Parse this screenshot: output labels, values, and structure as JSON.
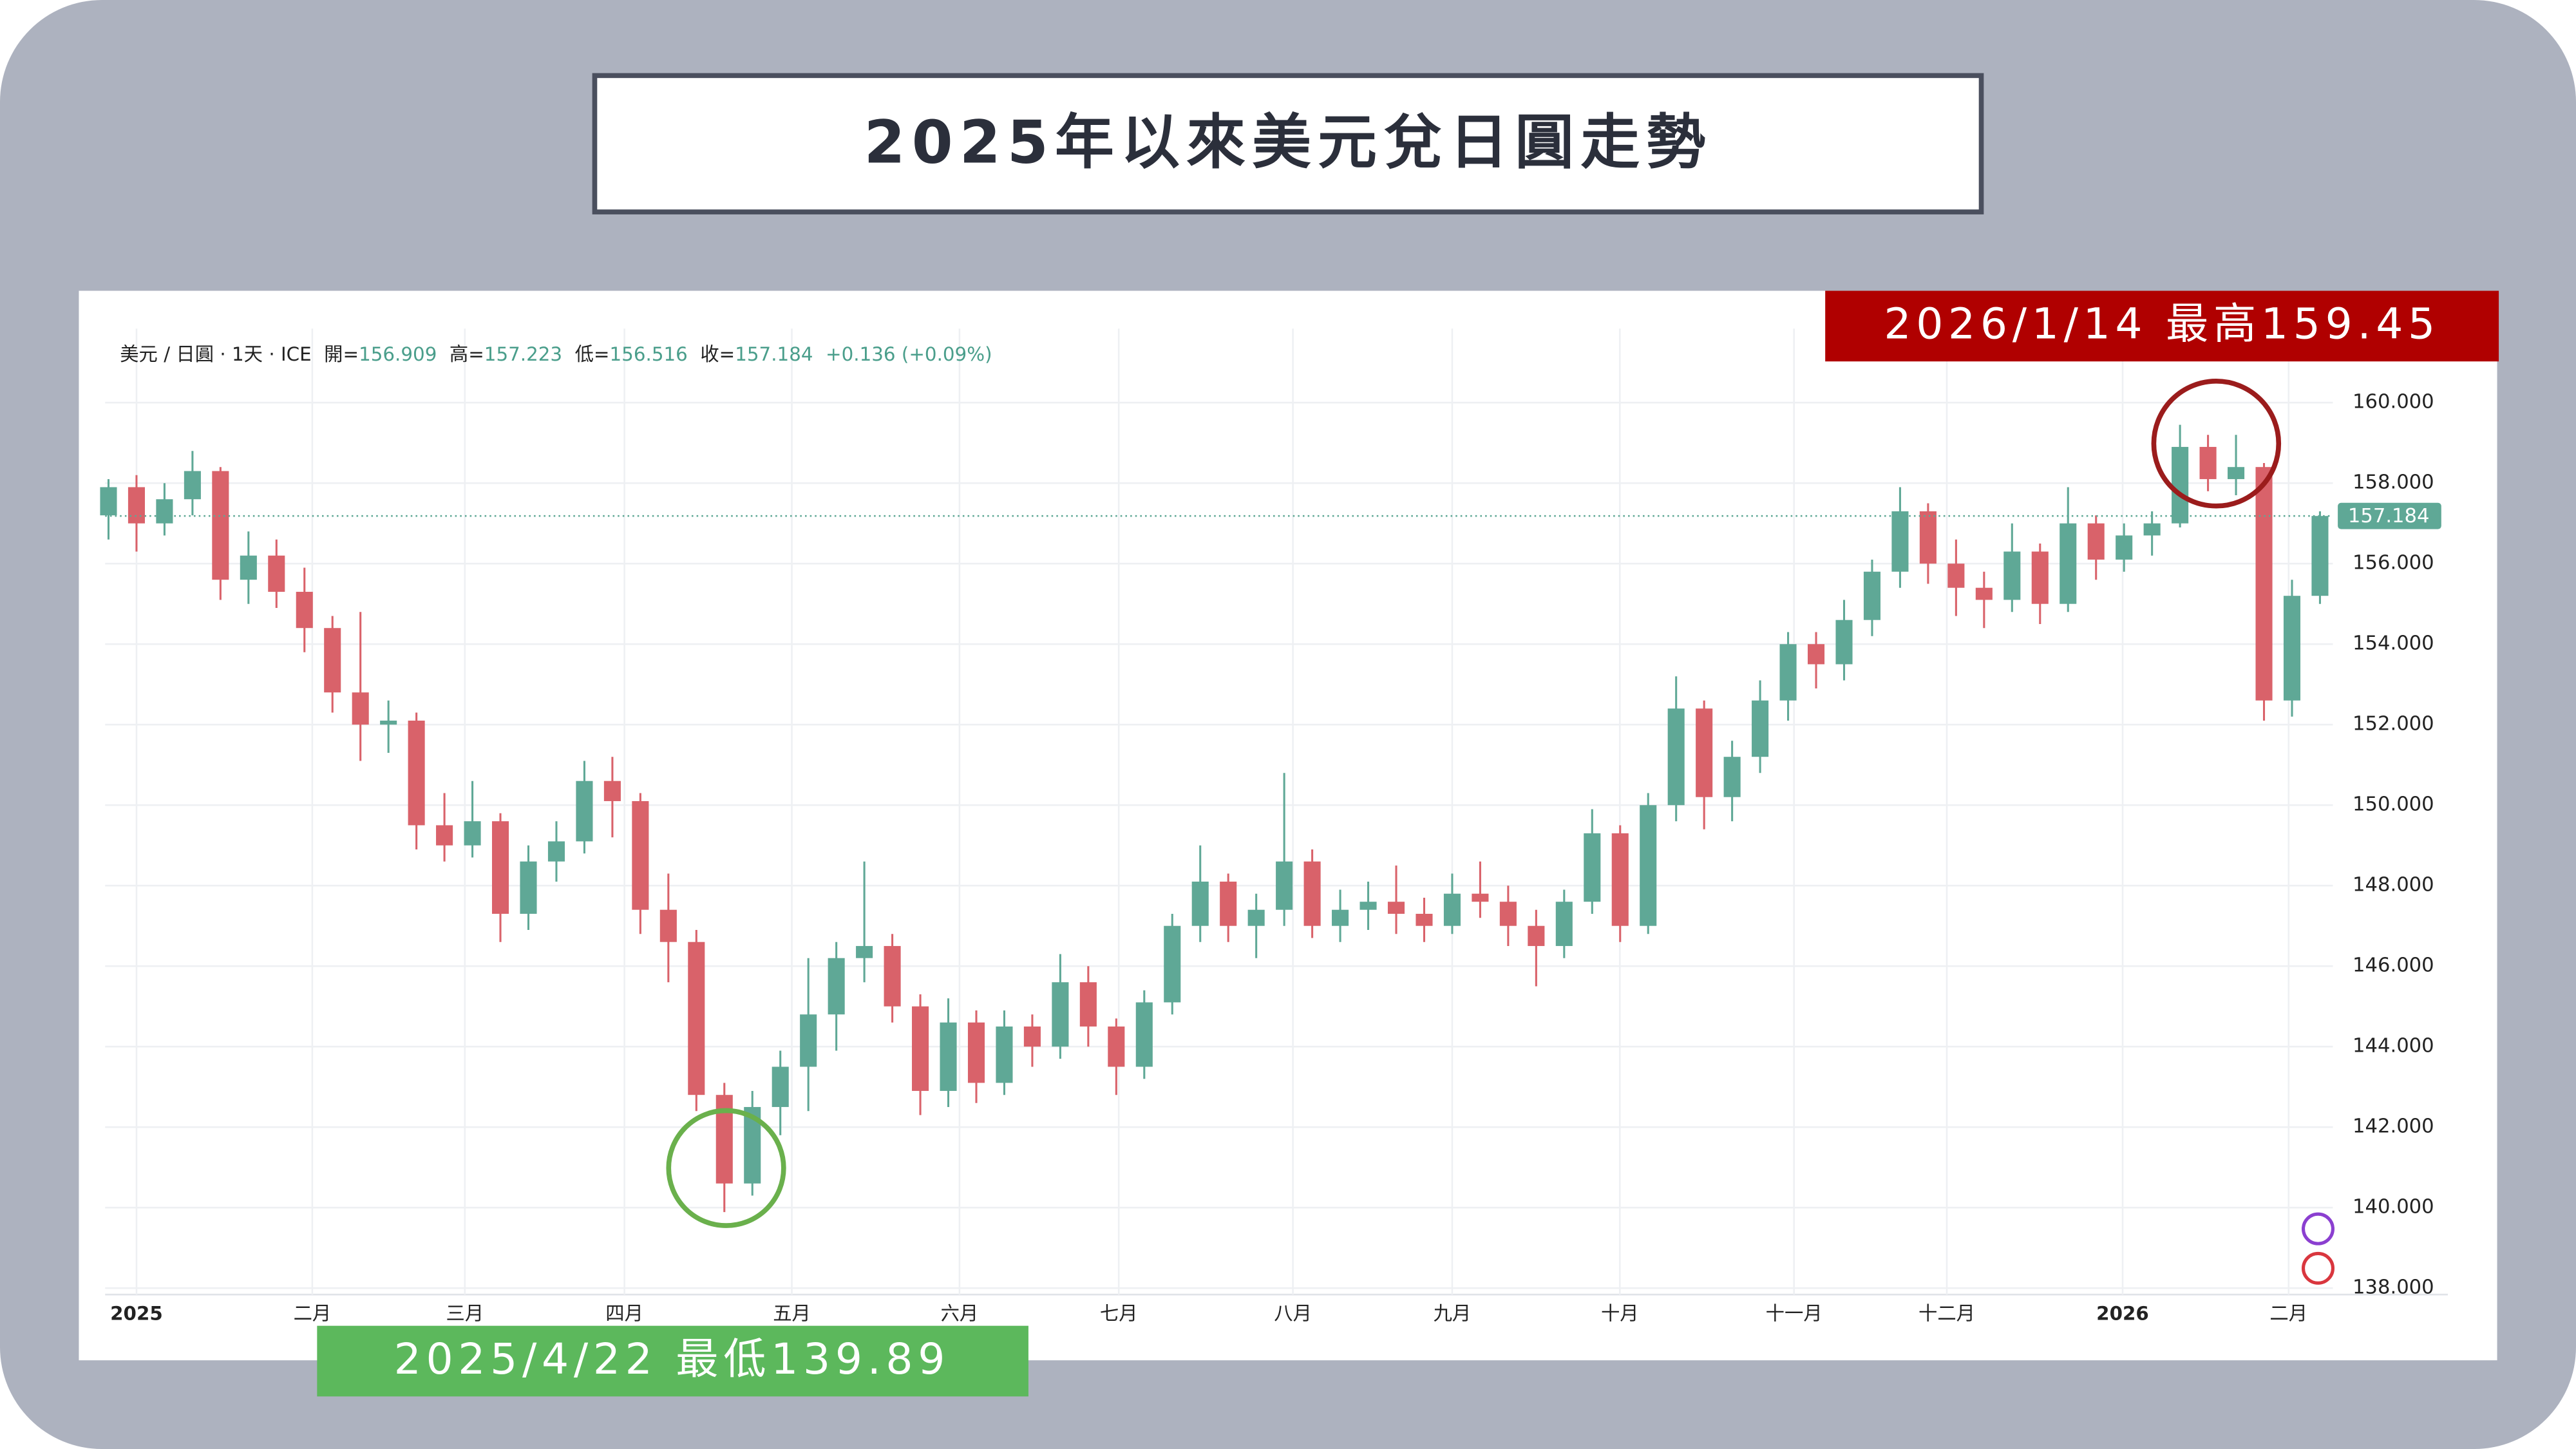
{
  "title": "2025年以來美元兌日圓走勢",
  "chart_data": {
    "type": "candlestick",
    "header": {
      "symbol": "美元 / 日圓 · 1天 · ICE",
      "open_label": "開=",
      "open": 156.909,
      "high_label": "高=",
      "high": 157.223,
      "low_label": "低=",
      "low": 156.516,
      "close_label": "收=",
      "close": 157.184,
      "change": "+0.136 (+0.09%)"
    },
    "up_color": "#5fa896",
    "down_color": "#d9626a",
    "open": [
      157.2,
      157.9,
      157.0,
      157.6,
      158.3,
      155.6,
      156.2,
      155.3,
      154.4,
      152.8,
      152.0,
      152.1,
      149.5,
      149.0,
      149.6,
      147.3,
      148.6,
      149.1,
      150.6,
      150.1,
      147.4,
      146.6,
      142.8,
      140.6,
      142.5,
      143.5,
      144.8,
      146.2,
      146.5,
      145.0,
      142.9,
      144.6,
      143.1,
      144.5,
      144.0,
      145.6,
      144.5,
      143.5,
      145.1,
      147.0,
      148.1,
      147.0,
      147.4,
      148.6,
      147.0,
      147.4,
      147.6,
      147.3,
      147.0,
      147.8,
      147.6,
      147.0,
      146.5,
      147.6,
      149.3,
      147.0,
      150.0,
      152.4,
      150.2,
      151.2,
      152.6,
      154.0,
      153.5,
      154.6,
      155.8,
      157.3,
      156.0,
      155.4,
      155.1,
      156.3,
      155.0,
      157.0,
      156.1,
      156.7,
      157.0,
      158.9,
      158.1,
      158.4,
      152.6,
      155.2
    ],
    "high": [
      158.1,
      158.2,
      158.0,
      158.8,
      158.4,
      156.8,
      156.6,
      155.9,
      154.7,
      154.8,
      152.6,
      152.3,
      150.3,
      150.6,
      149.8,
      149.0,
      149.6,
      151.1,
      151.2,
      150.3,
      148.3,
      146.9,
      143.1,
      142.9,
      143.9,
      146.2,
      146.6,
      148.6,
      146.8,
      145.3,
      145.2,
      144.9,
      144.9,
      144.8,
      146.3,
      146.0,
      144.7,
      145.4,
      147.3,
      149.0,
      148.3,
      147.8,
      150.8,
      148.9,
      147.9,
      148.1,
      148.5,
      147.7,
      148.3,
      148.6,
      148.0,
      147.4,
      147.9,
      149.9,
      149.5,
      150.3,
      153.2,
      152.6,
      151.6,
      153.1,
      154.3,
      154.3,
      155.1,
      156.1,
      157.9,
      157.5,
      156.6,
      155.8,
      157.0,
      156.5,
      157.9,
      157.2,
      157.0,
      157.3,
      159.45,
      159.2,
      159.2,
      158.5,
      155.6,
      157.3
    ],
    "low": [
      156.6,
      156.3,
      156.7,
      157.2,
      155.1,
      155.0,
      154.9,
      153.8,
      152.3,
      151.1,
      151.3,
      148.9,
      148.6,
      148.7,
      146.6,
      146.9,
      148.1,
      148.8,
      149.2,
      146.8,
      145.6,
      142.4,
      139.89,
      140.3,
      141.8,
      142.4,
      143.9,
      145.6,
      144.6,
      142.3,
      142.5,
      142.6,
      142.8,
      143.5,
      143.7,
      144.0,
      142.8,
      143.2,
      144.8,
      146.6,
      146.6,
      146.2,
      147.0,
      146.7,
      146.6,
      146.9,
      146.8,
      146.6,
      146.8,
      147.2,
      146.5,
      145.5,
      146.2,
      147.3,
      146.6,
      146.8,
      149.6,
      149.4,
      149.6,
      150.8,
      152.1,
      152.9,
      153.1,
      154.2,
      155.4,
      155.5,
      154.7,
      154.4,
      154.8,
      154.5,
      154.8,
      155.6,
      155.8,
      156.2,
      156.9,
      157.8,
      157.7,
      152.1,
      152.2,
      155.0
    ],
    "close": [
      157.9,
      157.0,
      157.6,
      158.3,
      155.6,
      156.2,
      155.3,
      154.4,
      152.8,
      152.0,
      152.1,
      149.5,
      149.0,
      149.6,
      147.3,
      148.6,
      149.1,
      150.6,
      150.1,
      147.4,
      146.6,
      142.8,
      140.6,
      142.5,
      143.5,
      144.8,
      146.2,
      146.5,
      145.0,
      142.9,
      144.6,
      143.1,
      144.5,
      144.0,
      145.6,
      144.5,
      143.5,
      145.1,
      147.0,
      148.1,
      147.0,
      147.4,
      148.6,
      147.0,
      147.4,
      147.6,
      147.3,
      147.0,
      147.8,
      147.6,
      147.0,
      146.5,
      147.6,
      149.3,
      147.0,
      150.0,
      152.4,
      150.2,
      151.2,
      152.6,
      154.0,
      153.5,
      154.6,
      155.8,
      157.3,
      156.0,
      155.4,
      155.1,
      156.3,
      155.0,
      157.0,
      156.1,
      156.7,
      157.0,
      158.9,
      158.1,
      158.4,
      152.6,
      155.2,
      157.184
    ],
    "last_price": 157.184,
    "xlim": [
      -0.12,
      79.46
    ],
    "xticks": [
      {
        "value": 1.0,
        "label": "2025"
      },
      {
        "value": 7.28,
        "label": "二月"
      },
      {
        "value": 12.73,
        "label": "三月"
      },
      {
        "value": 18.43,
        "label": "四月"
      },
      {
        "value": 24.41,
        "label": "五月"
      },
      {
        "value": 30.4,
        "label": "六月"
      },
      {
        "value": 36.09,
        "label": "七月"
      },
      {
        "value": 42.31,
        "label": "八月"
      },
      {
        "value": 48.0,
        "label": "九月"
      },
      {
        "value": 53.99,
        "label": "十月"
      },
      {
        "value": 60.21,
        "label": "十一月"
      },
      {
        "value": 65.67,
        "label": "十二月"
      },
      {
        "value": 71.95,
        "label": "2026"
      },
      {
        "value": 77.88,
        "label": "二月"
      }
    ],
    "ylim": [
      137.84,
      161.84
    ],
    "yticks": [
      {
        "value": 138,
        "label": "138.000"
      },
      {
        "value": 140,
        "label": "140.000"
      },
      {
        "value": 142,
        "label": "142.000"
      },
      {
        "value": 144,
        "label": "144.000"
      },
      {
        "value": 146,
        "label": "146.000"
      },
      {
        "value": 148,
        "label": "148.000"
      },
      {
        "value": 150,
        "label": "150.000"
      },
      {
        "value": 152,
        "label": "152.000"
      },
      {
        "value": 154,
        "label": "154.000"
      },
      {
        "value": 156,
        "label": "156.000"
      },
      {
        "value": 158,
        "label": "158.000"
      },
      {
        "value": 160,
        "label": "160.000"
      }
    ],
    "grid": true,
    "annotations": {
      "high": "2026/1/14 最高159.45",
      "low": "2025/4/22 最低139.89"
    }
  }
}
